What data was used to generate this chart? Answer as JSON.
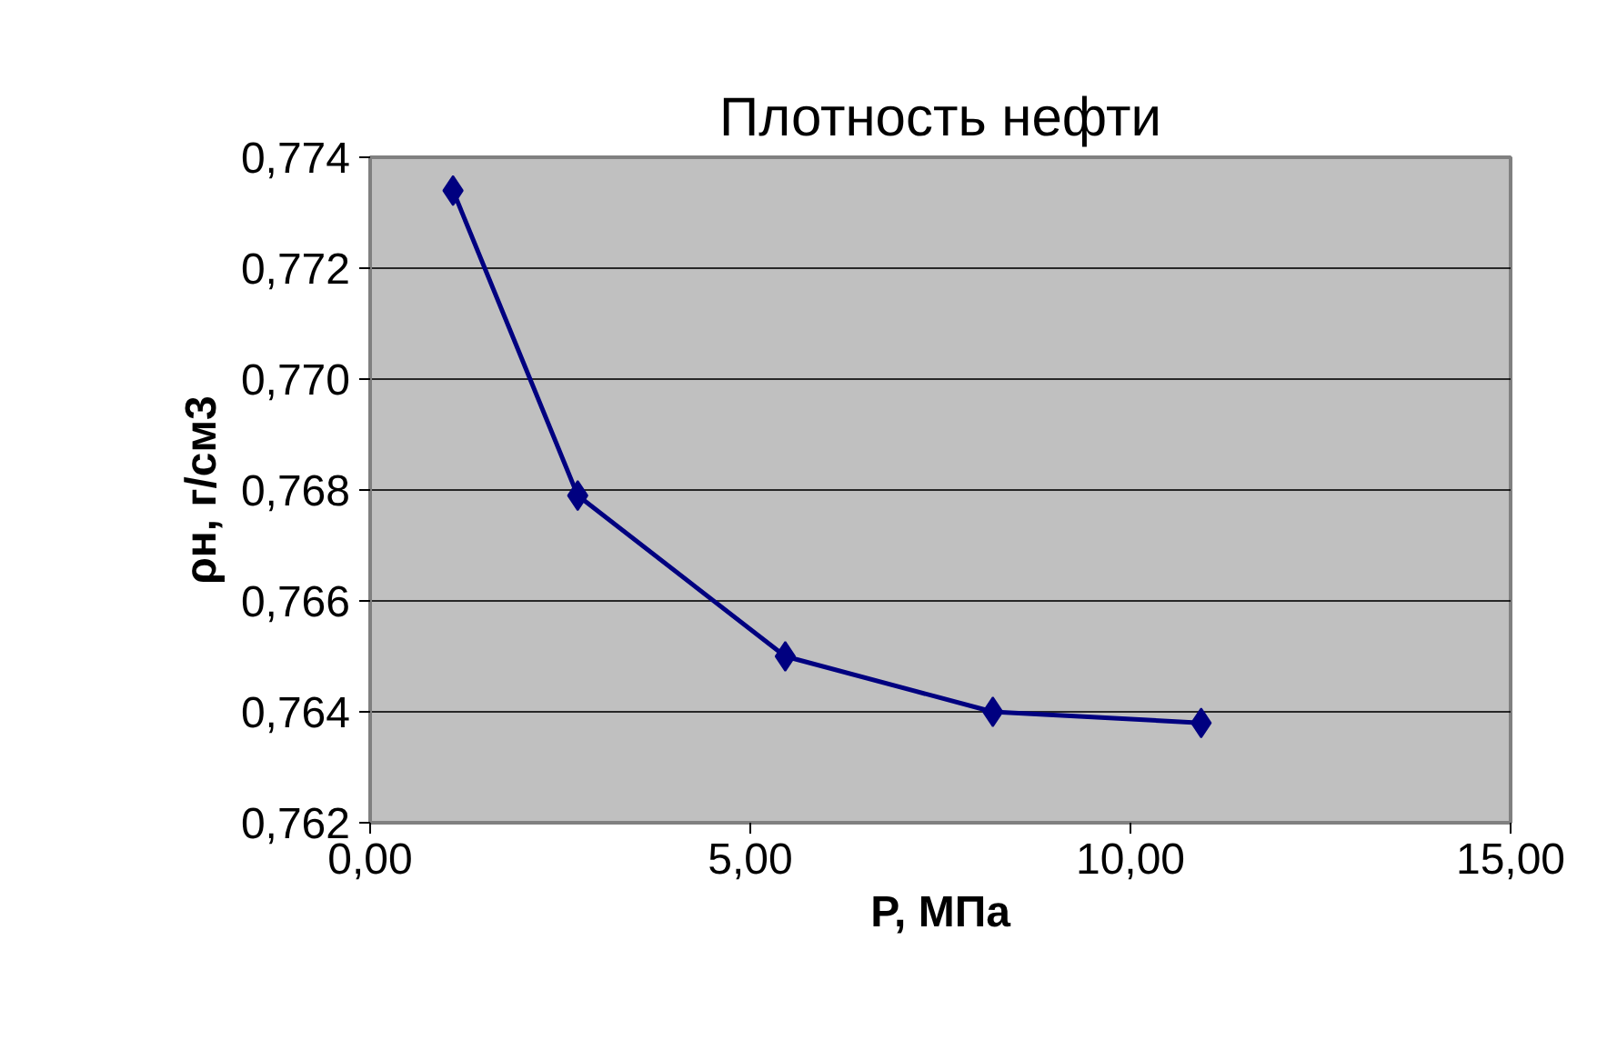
{
  "chart_data": {
    "type": "line",
    "title": "Плотность нефти",
    "xlabel": "P, МПа",
    "ylabel": "ρн, г/см3",
    "x": [
      1.09,
      2.73,
      5.46,
      8.19,
      10.93
    ],
    "series": [
      {
        "color": "#000080",
        "values": [
          0.7734,
          0.7679,
          0.765,
          0.764,
          0.7638
        ]
      }
    ],
    "xlim": [
      0,
      15
    ],
    "xticks": [
      {
        "value": 0,
        "label": "0,00"
      },
      {
        "value": 5,
        "label": "5,00"
      },
      {
        "value": 10,
        "label": "10,00"
      },
      {
        "value": 15,
        "label": "15,00"
      }
    ],
    "ylim": [
      0.762,
      0.774
    ],
    "yticks": [
      {
        "value": 0.762,
        "label": "0,762"
      },
      {
        "value": 0.764,
        "label": "0,764"
      },
      {
        "value": 0.766,
        "label": "0,766"
      },
      {
        "value": 0.768,
        "label": "0,768"
      },
      {
        "value": 0.77,
        "label": "0,770"
      },
      {
        "value": 0.772,
        "label": "0,772"
      },
      {
        "value": 0.774,
        "label": "0,774"
      }
    ],
    "grid": "y",
    "marker": "diamond",
    "line_style": "solid"
  }
}
